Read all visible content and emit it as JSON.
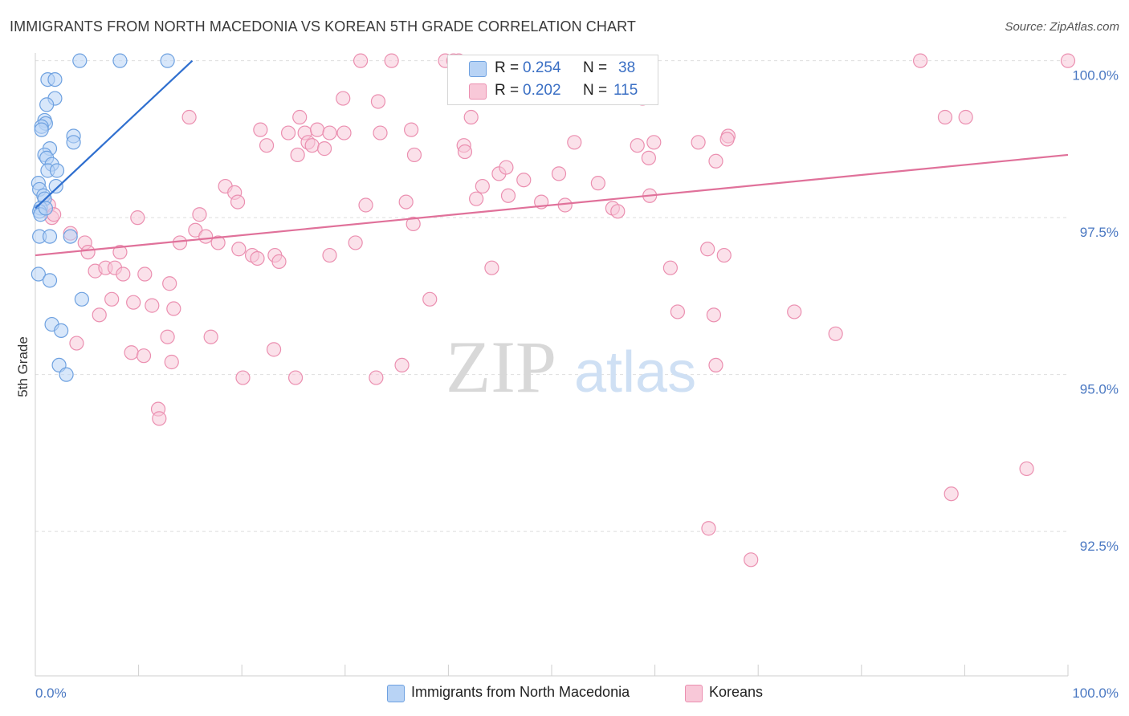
{
  "title": "IMMIGRANTS FROM NORTH MACEDONIA VS KOREAN 5TH GRADE CORRELATION CHART",
  "source": "Source: ZipAtlas.com",
  "watermark": {
    "zip": "ZIP",
    "atlas": "atlas"
  },
  "colors": {
    "blue_fill": "#b8d3f5",
    "blue_stroke": "#6ea1e0",
    "blue_line": "#2f6fcf",
    "pink_fill": "#f8c8d8",
    "pink_stroke": "#eb8fb0",
    "pink_line": "#e0719a",
    "grid": "#dedede",
    "tick_text": "#4a78c2"
  },
  "legend": {
    "rows": [
      {
        "r_label": "R = ",
        "r_value": "0.254",
        "n_label": "N = ",
        "n_value": "38"
      },
      {
        "r_label": "R = ",
        "r_value": "0.202",
        "n_label": "N = ",
        "n_value": "115"
      }
    ]
  },
  "bottom_legend": [
    "Immigrants from North Macedonia",
    "Koreans"
  ],
  "chart_data": {
    "type": "scatter",
    "title": "IMMIGRANTS FROM NORTH MACEDONIA VS KOREAN 5TH GRADE CORRELATION CHART",
    "xlabel": "",
    "ylabel": "5th Grade",
    "xlim": [
      0,
      100
    ],
    "ylim": [
      90.2,
      100.2
    ],
    "x_ticks": [
      0,
      10,
      20,
      30,
      40,
      50,
      60,
      70,
      80,
      90,
      100
    ],
    "x_tick_labels": {
      "0": "0.0%",
      "100": "100.0%"
    },
    "y_ticks": [
      92.5,
      95.0,
      97.5,
      100.0
    ],
    "y_tick_labels": [
      "92.5%",
      "95.0%",
      "97.5%",
      "100.0%"
    ],
    "grid": true,
    "legend_position": "top-center",
    "series": [
      {
        "name": "Immigrants from North Macedonia",
        "color": "#6ea1e0",
        "r": 0.254,
        "n": 38,
        "trend": {
          "x": [
            0.0,
            15.2
          ],
          "y": [
            97.65,
            100.0
          ]
        },
        "points": [
          [
            4.3,
            100.0
          ],
          [
            8.2,
            100.0
          ],
          [
            12.8,
            100.0
          ],
          [
            1.2,
            99.7
          ],
          [
            1.9,
            99.7
          ],
          [
            1.9,
            99.4
          ],
          [
            1.1,
            99.3
          ],
          [
            0.9,
            99.05
          ],
          [
            1.0,
            99.0
          ],
          [
            0.6,
            98.95
          ],
          [
            0.6,
            98.9
          ],
          [
            3.7,
            98.8
          ],
          [
            3.7,
            98.7
          ],
          [
            1.4,
            98.6
          ],
          [
            0.9,
            98.5
          ],
          [
            1.1,
            98.45
          ],
          [
            1.6,
            98.35
          ],
          [
            1.2,
            98.25
          ],
          [
            2.1,
            98.25
          ],
          [
            0.3,
            98.05
          ],
          [
            2.0,
            98.0
          ],
          [
            0.4,
            97.95
          ],
          [
            0.8,
            97.85
          ],
          [
            0.9,
            97.8
          ],
          [
            0.5,
            97.65
          ],
          [
            0.4,
            97.6
          ],
          [
            0.5,
            97.55
          ],
          [
            1.0,
            97.65
          ],
          [
            0.4,
            97.2
          ],
          [
            1.4,
            97.2
          ],
          [
            3.4,
            97.2
          ],
          [
            0.3,
            96.6
          ],
          [
            1.4,
            96.5
          ],
          [
            4.5,
            96.2
          ],
          [
            1.6,
            95.8
          ],
          [
            2.5,
            95.7
          ],
          [
            2.3,
            95.15
          ],
          [
            3.0,
            95.0
          ]
        ]
      },
      {
        "name": "Koreans",
        "color": "#eb8fb0",
        "r": 0.202,
        "n": 115,
        "trend": {
          "x": [
            0.0,
            100.0
          ],
          "y": [
            96.9,
            98.5
          ]
        },
        "points": [
          [
            31.5,
            100.0
          ],
          [
            34.5,
            100.0
          ],
          [
            39.7,
            100.0
          ],
          [
            40.5,
            100.0
          ],
          [
            41.0,
            100.0
          ],
          [
            85.7,
            100.0
          ],
          [
            100.0,
            100.0
          ],
          [
            29.8,
            99.4
          ],
          [
            33.2,
            99.35
          ],
          [
            58.8,
            99.4
          ],
          [
            14.9,
            99.1
          ],
          [
            25.6,
            99.1
          ],
          [
            42.2,
            99.1
          ],
          [
            67.1,
            98.8
          ],
          [
            88.1,
            99.1
          ],
          [
            90.1,
            99.1
          ],
          [
            21.8,
            98.9
          ],
          [
            24.5,
            98.85
          ],
          [
            26.1,
            98.85
          ],
          [
            27.3,
            98.9
          ],
          [
            28.5,
            98.85
          ],
          [
            29.9,
            98.85
          ],
          [
            33.4,
            98.85
          ],
          [
            36.4,
            98.9
          ],
          [
            26.4,
            98.7
          ],
          [
            22.4,
            98.65
          ],
          [
            26.8,
            98.65
          ],
          [
            28.0,
            98.6
          ],
          [
            41.5,
            98.65
          ],
          [
            41.6,
            98.55
          ],
          [
            52.2,
            98.7
          ],
          [
            58.3,
            98.65
          ],
          [
            59.9,
            98.7
          ],
          [
            64.2,
            98.7
          ],
          [
            67.0,
            98.75
          ],
          [
            25.4,
            98.5
          ],
          [
            36.7,
            98.5
          ],
          [
            59.4,
            98.45
          ],
          [
            65.9,
            98.4
          ],
          [
            44.9,
            98.2
          ],
          [
            43.3,
            98.0
          ],
          [
            47.3,
            98.1
          ],
          [
            50.7,
            98.2
          ],
          [
            54.5,
            98.05
          ],
          [
            45.6,
            98.3
          ],
          [
            18.4,
            98.0
          ],
          [
            19.3,
            97.9
          ],
          [
            19.6,
            97.75
          ],
          [
            32.0,
            97.7
          ],
          [
            35.9,
            97.75
          ],
          [
            42.7,
            97.8
          ],
          [
            45.8,
            97.85
          ],
          [
            59.5,
            97.85
          ],
          [
            49.0,
            97.75
          ],
          [
            51.3,
            97.7
          ],
          [
            55.9,
            97.65
          ],
          [
            56.4,
            97.6
          ],
          [
            1.3,
            97.7
          ],
          [
            1.6,
            97.5
          ],
          [
            1.8,
            97.55
          ],
          [
            9.9,
            97.5
          ],
          [
            15.9,
            97.55
          ],
          [
            15.5,
            97.3
          ],
          [
            16.5,
            97.2
          ],
          [
            17.7,
            97.1
          ],
          [
            3.4,
            97.25
          ],
          [
            4.8,
            97.1
          ],
          [
            5.1,
            96.95
          ],
          [
            8.2,
            96.95
          ],
          [
            14.0,
            97.1
          ],
          [
            19.7,
            97.0
          ],
          [
            21.0,
            96.9
          ],
          [
            21.5,
            96.85
          ],
          [
            23.2,
            96.9
          ],
          [
            23.6,
            96.8
          ],
          [
            28.5,
            96.9
          ],
          [
            31.0,
            97.1
          ],
          [
            36.6,
            97.4
          ],
          [
            44.2,
            96.7
          ],
          [
            65.1,
            97.0
          ],
          [
            66.7,
            96.9
          ],
          [
            61.5,
            96.7
          ],
          [
            5.8,
            96.65
          ],
          [
            6.8,
            96.7
          ],
          [
            7.7,
            96.7
          ],
          [
            8.5,
            96.6
          ],
          [
            10.6,
            96.6
          ],
          [
            13.0,
            96.45
          ],
          [
            7.4,
            96.2
          ],
          [
            9.5,
            96.15
          ],
          [
            11.3,
            96.1
          ],
          [
            13.4,
            96.05
          ],
          [
            6.2,
            95.95
          ],
          [
            38.2,
            96.2
          ],
          [
            62.2,
            96.0
          ],
          [
            65.7,
            95.95
          ],
          [
            73.5,
            96.0
          ],
          [
            77.5,
            95.65
          ],
          [
            12.8,
            95.6
          ],
          [
            17.0,
            95.6
          ],
          [
            4.0,
            95.5
          ],
          [
            9.3,
            95.35
          ],
          [
            10.5,
            95.3
          ],
          [
            13.2,
            95.2
          ],
          [
            23.1,
            95.4
          ],
          [
            35.5,
            95.15
          ],
          [
            33.0,
            94.95
          ],
          [
            25.2,
            94.95
          ],
          [
            20.1,
            94.95
          ],
          [
            11.9,
            94.45
          ],
          [
            12.0,
            94.3
          ],
          [
            65.9,
            95.15
          ],
          [
            88.7,
            93.1
          ],
          [
            96.0,
            93.5
          ],
          [
            65.2,
            92.55
          ],
          [
            69.3,
            92.05
          ]
        ]
      }
    ]
  }
}
